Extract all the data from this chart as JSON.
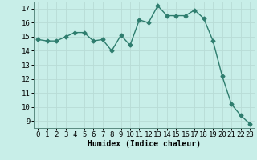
{
  "x": [
    0,
    1,
    2,
    3,
    4,
    5,
    6,
    7,
    8,
    9,
    10,
    11,
    12,
    13,
    14,
    15,
    16,
    17,
    18,
    19,
    20,
    21,
    22,
    23
  ],
  "y": [
    14.8,
    14.7,
    14.7,
    15.0,
    15.3,
    15.3,
    14.7,
    14.8,
    14.0,
    15.1,
    14.4,
    16.2,
    16.0,
    17.2,
    16.5,
    16.5,
    16.5,
    16.9,
    16.3,
    14.7,
    12.2,
    10.2,
    9.4,
    8.8
  ],
  "line_color": "#2e7d6e",
  "marker": "D",
  "markersize": 2.5,
  "linewidth": 1.0,
  "bg_color": "#c8eee8",
  "grid_color": "#b8dcd6",
  "xlabel": "Humidex (Indice chaleur)",
  "xlabel_fontsize": 7,
  "tick_fontsize": 6.5,
  "ylim": [
    8.5,
    17.5
  ],
  "yticks": [
    9,
    10,
    11,
    12,
    13,
    14,
    15,
    16,
    17
  ],
  "xlim": [
    -0.5,
    23.5
  ],
  "xticks": [
    0,
    1,
    2,
    3,
    4,
    5,
    6,
    7,
    8,
    9,
    10,
    11,
    12,
    13,
    14,
    15,
    16,
    17,
    18,
    19,
    20,
    21,
    22,
    23
  ]
}
